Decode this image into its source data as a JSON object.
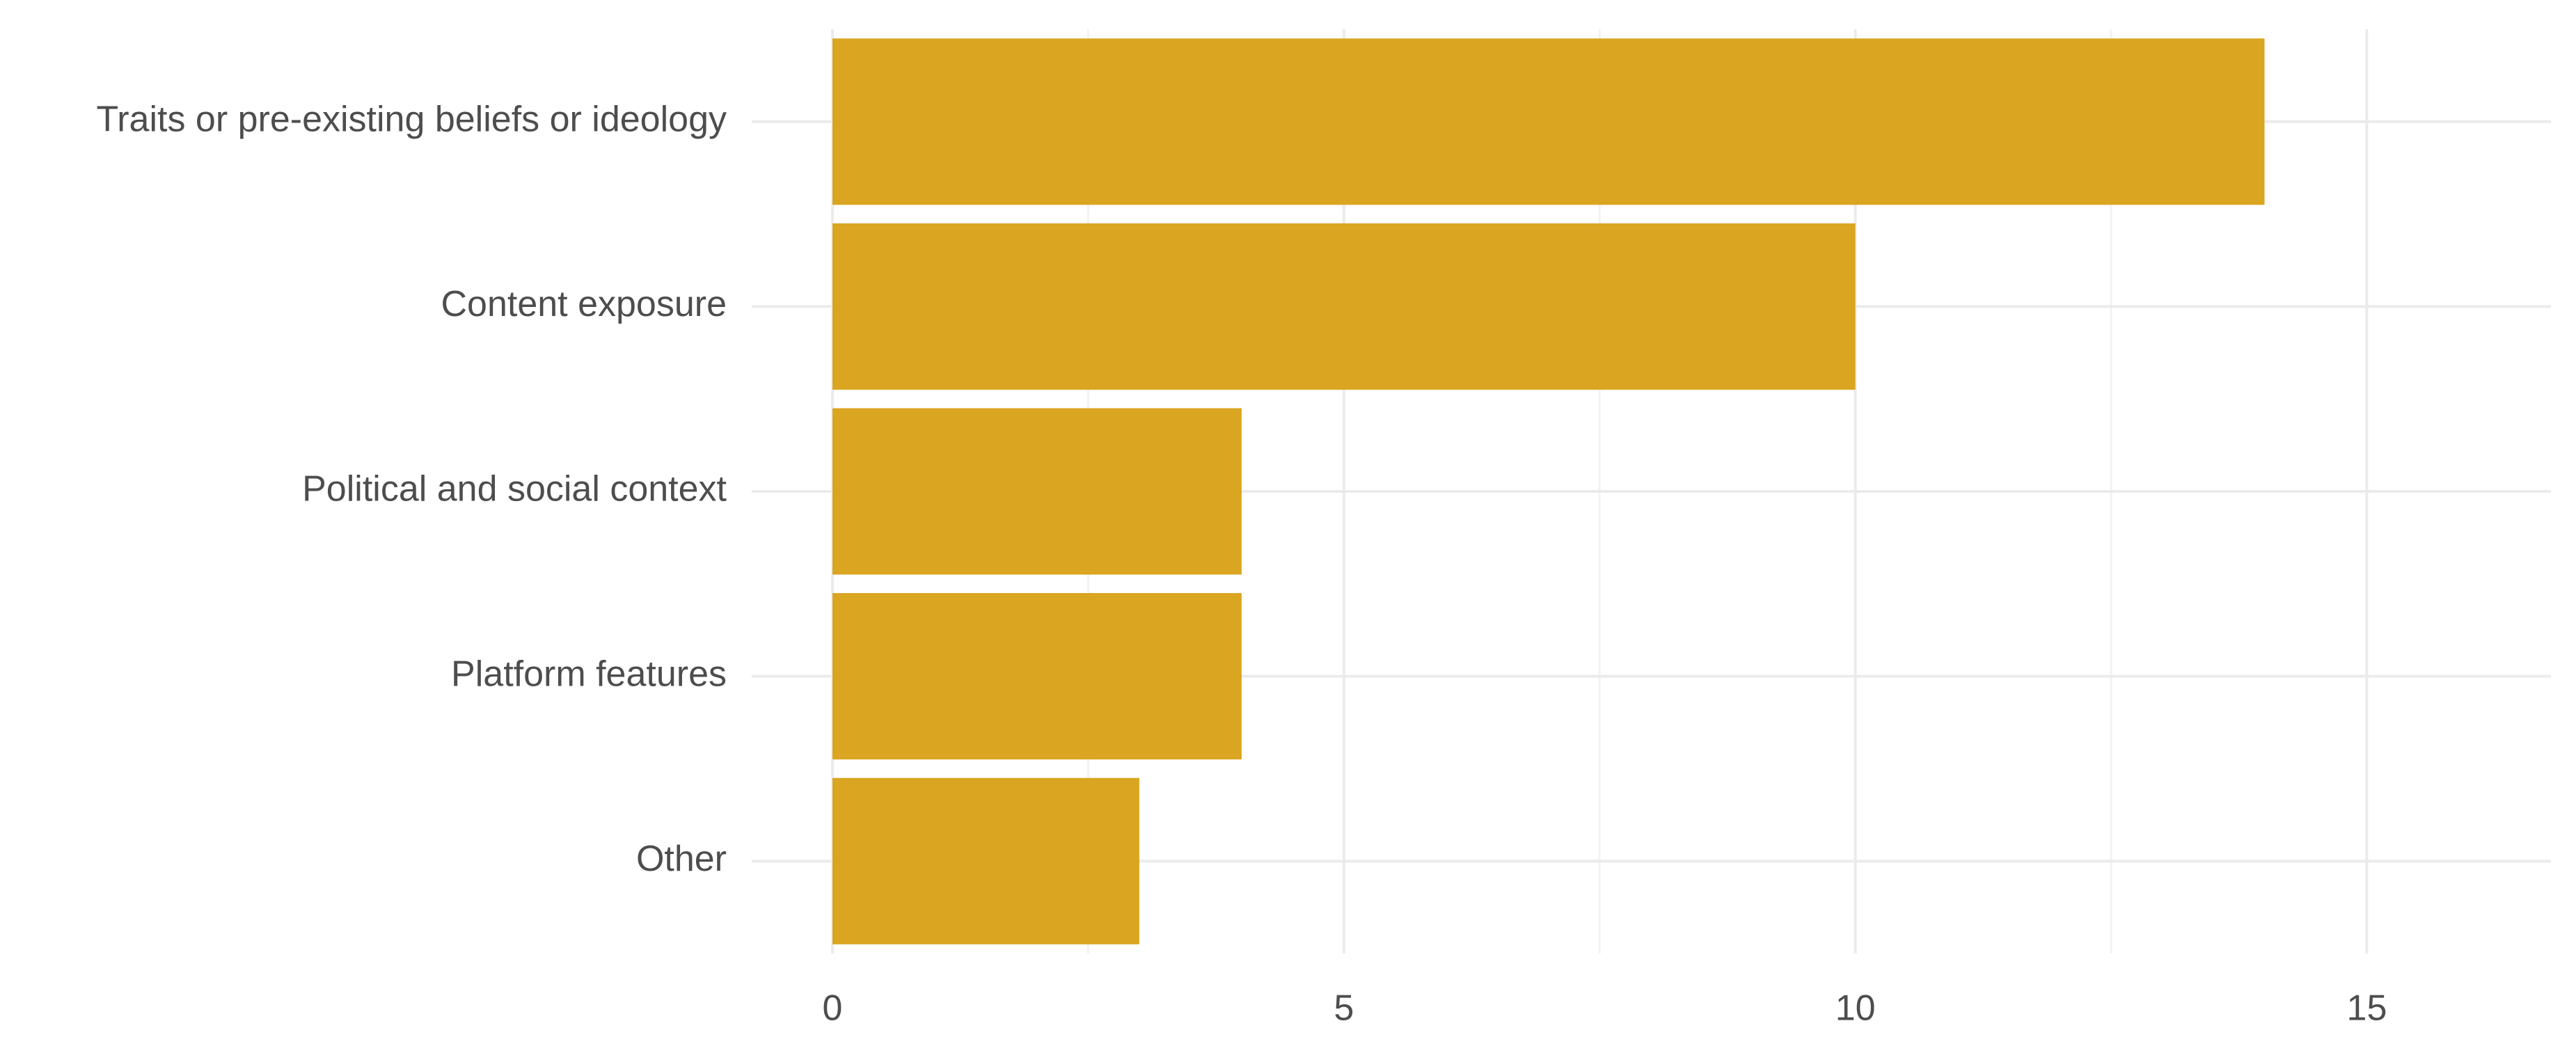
{
  "chart_data": {
    "type": "bar",
    "orientation": "horizontal",
    "categories": [
      "Traits or pre-existing beliefs or ideology",
      "Content exposure",
      "Political and social context",
      "Platform features",
      "Other"
    ],
    "values": [
      14,
      10,
      4,
      4,
      3
    ],
    "color": "#DAA520",
    "xlim": [
      0,
      16.8
    ],
    "xticks": [
      0,
      5,
      10,
      15
    ],
    "xminorticks": [
      2.5,
      7.5,
      12.5
    ],
    "grid": true
  }
}
